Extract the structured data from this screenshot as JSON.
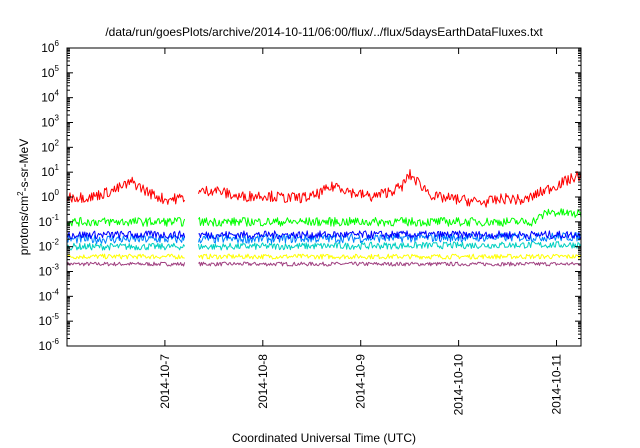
{
  "chart_data": {
    "type": "line",
    "title": "/data/run/goesPlots/archive/2014-10-11/06:00/flux/../flux/5daysEarthDataFluxes.txt",
    "xlabel": "Coordinated Universal Time (UTC)",
    "ylabel": {
      "base": "protons/cm",
      "sup": "2",
      "rest": "-s-sr-MeV"
    },
    "y_scale": "log",
    "ylim": [
      1e-06,
      1000000
    ],
    "y_ticks": [
      {
        "value": 1e-06,
        "base": "10",
        "exp": "-6"
      },
      {
        "value": 1e-05,
        "base": "10",
        "exp": "-5"
      },
      {
        "value": 0.0001,
        "base": "10",
        "exp": "-4"
      },
      {
        "value": 0.001,
        "base": "10",
        "exp": "-3"
      },
      {
        "value": 0.01,
        "base": "10",
        "exp": "-2"
      },
      {
        "value": 0.1,
        "base": "10",
        "exp": "-1"
      },
      {
        "value": 1,
        "base": "10",
        "exp": "0"
      },
      {
        "value": 10,
        "base": "10",
        "exp": "1"
      },
      {
        "value": 100,
        "base": "10",
        "exp": "2"
      },
      {
        "value": 1000,
        "base": "10",
        "exp": "3"
      },
      {
        "value": 10000,
        "base": "10",
        "exp": "4"
      },
      {
        "value": 100000,
        "base": "10",
        "exp": "5"
      },
      {
        "value": 1000000,
        "base": "10",
        "exp": "6"
      }
    ],
    "xlim": [
      "2014-10-06 00:00",
      "2014-10-11 06:00"
    ],
    "x_ticks": [
      "2014-10-7",
      "2014-10-8",
      "2014-10-9",
      "2014-10-10",
      "2014-10-11"
    ],
    "x_tick_dates": [
      "2014-10-07 00:00",
      "2014-10-08 00:00",
      "2014-10-09 00:00",
      "2014-10-10 00:00",
      "2014-10-11 00:00"
    ],
    "data_gap": [
      "2014-10-07 05:00",
      "2014-10-07 08:00"
    ],
    "grid": false,
    "legend": "none",
    "series": [
      {
        "color": "#ff0000",
        "x": [
          "2014-10-06 00:00",
          "2014-10-06 06:00",
          "2014-10-06 12:00",
          "2014-10-06 16:00",
          "2014-10-06 20:00",
          "2014-10-07 00:00",
          "2014-10-07 04:00",
          "2014-10-07 08:00",
          "2014-10-07 12:00",
          "2014-10-07 18:00",
          "2014-10-08 00:00",
          "2014-10-08 06:00",
          "2014-10-08 12:00",
          "2014-10-08 18:00",
          "2014-10-08 22:00",
          "2014-10-09 03:00",
          "2014-10-09 10:00",
          "2014-10-09 12:00",
          "2014-10-09 18:00",
          "2014-10-10 00:00",
          "2014-10-10 06:00",
          "2014-10-10 12:00",
          "2014-10-10 16:00",
          "2014-10-10 20:00",
          "2014-10-11 00:00",
          "2014-10-11 06:00"
        ],
        "values": [
          1.0,
          1.0,
          2.0,
          4.0,
          1.5,
          0.8,
          0.9,
          1.5,
          2.0,
          1.0,
          1.2,
          0.9,
          1.0,
          3.0,
          1.5,
          1.0,
          2.5,
          8.0,
          1.0,
          0.8,
          0.6,
          0.9,
          0.7,
          1.5,
          3.0,
          8.0
        ]
      },
      {
        "color": "#00ff00",
        "x": [
          "2014-10-06 00:00",
          "2014-10-07 04:00",
          "2014-10-07 08:00",
          "2014-10-10 18:00",
          "2014-10-10 22:00",
          "2014-10-11 06:00"
        ],
        "values": [
          0.1,
          0.1,
          0.1,
          0.1,
          0.25,
          0.2
        ]
      },
      {
        "color": "#0000ff",
        "x": [
          "2014-10-06 00:00",
          "2014-10-07 04:00",
          "2014-10-07 08:00",
          "2014-10-11 06:00"
        ],
        "values": [
          0.03,
          0.03,
          0.03,
          0.03
        ]
      },
      {
        "color": "#0080ff",
        "x": [
          "2014-10-06 00:00",
          "2014-10-07 04:00",
          "2014-10-07 08:00",
          "2014-10-11 06:00"
        ],
        "values": [
          0.02,
          0.02,
          0.02,
          0.025
        ]
      },
      {
        "color": "#00d0c0",
        "x": [
          "2014-10-06 00:00",
          "2014-10-07 04:00",
          "2014-10-07 08:00",
          "2014-10-11 06:00"
        ],
        "values": [
          0.01,
          0.01,
          0.01,
          0.012
        ]
      },
      {
        "color": "#ffff00",
        "x": [
          "2014-10-06 00:00",
          "2014-10-07 04:00",
          "2014-10-07 08:00",
          "2014-10-11 06:00"
        ],
        "values": [
          0.004,
          0.004,
          0.004,
          0.004
        ]
      },
      {
        "color": "#a04080",
        "x": [
          "2014-10-06 00:00",
          "2014-10-07 04:00",
          "2014-10-07 08:00",
          "2014-10-11 06:00"
        ],
        "values": [
          0.002,
          0.002,
          0.002,
          0.002
        ]
      }
    ]
  }
}
